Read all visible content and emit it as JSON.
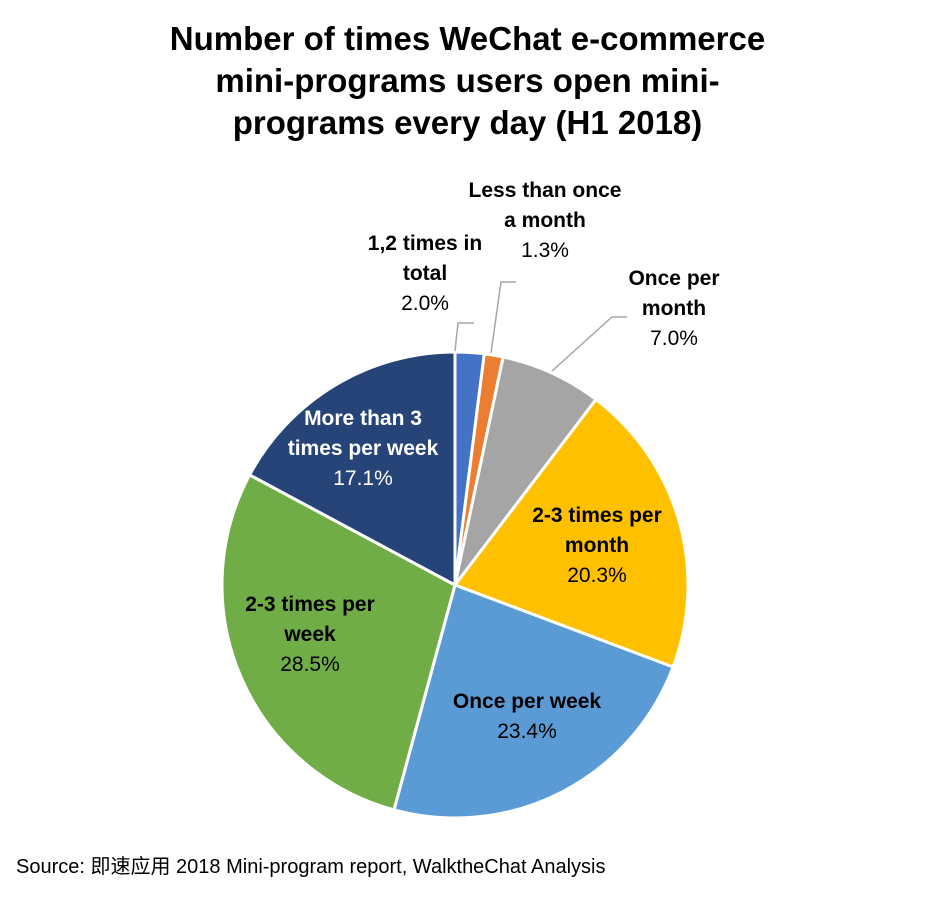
{
  "chart_data": {
    "type": "pie",
    "title": "Number of times WeChat e-commerce mini-programs users open mini-programs every day (H1 2018)",
    "title_lines": [
      "Number of times WeChat e-commerce",
      "mini-programs users open mini-",
      "programs every day (H1 2018)"
    ],
    "start_angle_deg": 0,
    "direction": "clockwise",
    "slices": [
      {
        "label_lines": [
          "1,2 times in",
          "total"
        ],
        "label": "1,2 times in total",
        "value": 2.0,
        "value_label": "2.0%",
        "color": "#4472c4",
        "label_color": "#000000",
        "outside": true
      },
      {
        "label_lines": [
          "Less than once",
          "a month"
        ],
        "label": "Less than once a month",
        "value": 1.3,
        "value_label": "1.3%",
        "color": "#ed7d31",
        "label_color": "#000000",
        "outside": true
      },
      {
        "label_lines": [
          "Once per",
          "month"
        ],
        "label": "Once per month",
        "value": 7.0,
        "value_label": "7.0%",
        "color": "#a5a5a5",
        "label_color": "#000000",
        "outside": true
      },
      {
        "label_lines": [
          "2-3 times per",
          "month"
        ],
        "label": "2-3 times per month",
        "value": 20.3,
        "value_label": "20.3%",
        "color": "#ffc000",
        "label_color": "#000000",
        "outside": false
      },
      {
        "label_lines": [
          "Once per week"
        ],
        "label": "Once per week",
        "value": 23.4,
        "value_label": "23.4%",
        "color": "#5b9bd5",
        "label_color": "#000000",
        "outside": false
      },
      {
        "label_lines": [
          "2-3 times per",
          "week"
        ],
        "label": "2-3 times per week",
        "value": 28.5,
        "value_label": "28.5%",
        "color": "#70ad47",
        "label_color": "#000000",
        "outside": false
      },
      {
        "label_lines": [
          "More than 3",
          "times per week"
        ],
        "label": "More than 3 times per week",
        "value": 17.1,
        "value_label": "17.1%",
        "color": "#264478",
        "label_color": "#ffffff",
        "outside": false
      }
    ]
  },
  "source": "Source: 即速应用 2018 Mini-program report, WalktheChat Analysis"
}
